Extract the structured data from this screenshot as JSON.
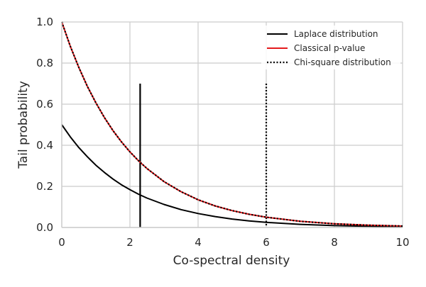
{
  "chart_data": {
    "type": "line",
    "xlabel": "Co-spectral density",
    "ylabel": "Tail probability",
    "xlim": [
      0,
      10
    ],
    "ylim": [
      0,
      1.0
    ],
    "x_ticks": [
      {
        "value": 0,
        "label": "0"
      },
      {
        "value": 2,
        "label": "2"
      },
      {
        "value": 4,
        "label": "4"
      },
      {
        "value": 6,
        "label": "6"
      },
      {
        "value": 8,
        "label": "8"
      },
      {
        "value": 10,
        "label": "10"
      }
    ],
    "y_ticks": [
      {
        "value": 0,
        "label": "0.0"
      },
      {
        "value": 0.2,
        "label": "0.2"
      },
      {
        "value": 0.4,
        "label": "0.4"
      },
      {
        "value": 0.6,
        "label": "0.6"
      },
      {
        "value": 0.8,
        "label": "0.8"
      },
      {
        "value": 1.0,
        "label": "1.0"
      }
    ],
    "grid": true,
    "legend_position": "top-right",
    "series": [
      {
        "name": "Laplace distribution",
        "color": "#000000",
        "style": "solid",
        "x": [
          0,
          0.25,
          0.5,
          0.75,
          1,
          1.25,
          1.5,
          1.75,
          2,
          2.25,
          2.5,
          3,
          3.5,
          4,
          4.5,
          5,
          5.5,
          6,
          7,
          8,
          9,
          10
        ],
        "y": [
          0.5,
          0.441,
          0.389,
          0.344,
          0.303,
          0.268,
          0.236,
          0.208,
          0.184,
          0.162,
          0.143,
          0.112,
          0.087,
          0.068,
          0.053,
          0.041,
          0.032,
          0.025,
          0.015,
          0.009,
          0.006,
          0.003
        ]
      },
      {
        "name": "Classical p-value",
        "color": "#e41a1c",
        "style": "solid",
        "x": [
          0,
          0.25,
          0.5,
          0.75,
          1,
          1.25,
          1.5,
          1.75,
          2,
          2.25,
          2.5,
          3,
          3.5,
          4,
          4.5,
          5,
          5.5,
          6,
          7,
          8,
          9,
          10
        ],
        "y": [
          1.0,
          0.882,
          0.779,
          0.687,
          0.607,
          0.535,
          0.472,
          0.417,
          0.368,
          0.325,
          0.287,
          0.223,
          0.174,
          0.135,
          0.105,
          0.082,
          0.064,
          0.05,
          0.03,
          0.018,
          0.011,
          0.007
        ]
      },
      {
        "name": "Chi-square distribution",
        "color": "#000000",
        "style": "dotted",
        "x": [
          0,
          0.25,
          0.5,
          0.75,
          1,
          1.25,
          1.5,
          1.75,
          2,
          2.25,
          2.5,
          3,
          3.5,
          4,
          4.5,
          5,
          5.5,
          6,
          7,
          8,
          9,
          10
        ],
        "y": [
          1.0,
          0.882,
          0.779,
          0.687,
          0.607,
          0.535,
          0.472,
          0.417,
          0.368,
          0.325,
          0.287,
          0.223,
          0.174,
          0.135,
          0.105,
          0.082,
          0.064,
          0.05,
          0.03,
          0.018,
          0.011,
          0.007
        ]
      }
    ],
    "vertical_lines": [
      {
        "x": 2.3,
        "y_top": 0.7,
        "color": "#000000",
        "style": "solid"
      },
      {
        "x": 6.0,
        "y_top": 0.7,
        "color": "#000000",
        "style": "dotted"
      }
    ]
  }
}
